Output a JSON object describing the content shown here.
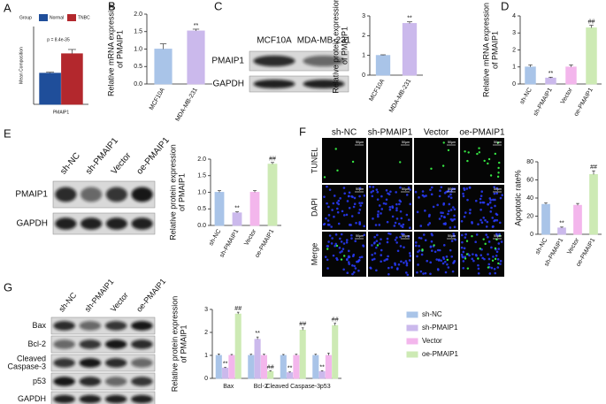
{
  "panels": [
    "A",
    "B",
    "C",
    "D",
    "E",
    "F",
    "G"
  ],
  "blots": {
    "C": {
      "columns": [
        "MCF10A",
        "MDA-MB-231"
      ],
      "rows": [
        [
          "PMAIP1"
        ],
        [
          "GAPDH"
        ]
      ]
    },
    "E": {
      "columns": [
        "sh-NC",
        "sh-PMAIP1",
        "Vector",
        "oe-PMAIP1"
      ],
      "rows": [
        [
          "PMAIP1"
        ],
        [
          "GAPDH"
        ]
      ]
    },
    "G": {
      "columns": [
        "sh-NC",
        "sh-PMAIP1",
        "Vector",
        "oe-PMAIP1"
      ],
      "rows": [
        [
          "Bax"
        ],
        [
          "Bcl-2"
        ],
        [
          "Cleaved",
          "Caspase-3"
        ],
        [
          "p53"
        ],
        [
          "GAPDH"
        ]
      ]
    }
  },
  "microscopy": {
    "columns": [
      "sh-NC",
      "sh-PMAIP1",
      "Vector",
      "oe-PMAIP1"
    ],
    "rows": [
      "TUNEL",
      "DAPI",
      "Merge"
    ],
    "scale": "50μm"
  },
  "chart_data": [
    {
      "type": "bar",
      "ylabel": [
        "Mean Composition"
      ],
      "legend_title": "Group",
      "annotation": "p = 8.4e-35",
      "categories": [
        "PMAIP1"
      ],
      "ylim": [
        0,
        4
      ],
      "series": [
        {
          "name": "Normal",
          "color": "#1f4e9a",
          "values": [
            1.6
          ],
          "errors": [
            0.05
          ]
        },
        {
          "name": "TNBC",
          "color": "#b3282d",
          "values": [
            2.6
          ],
          "errors": [
            0.22
          ]
        }
      ]
    },
    {
      "type": "bar",
      "ylabel": [
        "Relative mRNA expression",
        "of PMAIP1"
      ],
      "categories": [
        "MCF10A",
        "MDA-MB-231"
      ],
      "values": [
        1.0,
        1.52
      ],
      "errors": [
        0.15,
        0.05
      ],
      "colors": [
        "#a9c4e8",
        "#cbb9ec"
      ],
      "significance": [
        null,
        "**"
      ],
      "ylim": [
        0,
        2
      ],
      "yticks": [
        {
          "value": 0,
          "label": "0.0"
        },
        0.5,
        {
          "value": 1,
          "label": "1.0"
        },
        1.5,
        {
          "value": 2,
          "label": "2.0"
        }
      ]
    },
    {
      "type": "bar",
      "ylabel": [
        "Relative protein expression",
        "of PMAIP1"
      ],
      "categories": [
        "MCF10A",
        "MDA-MB-231"
      ],
      "values": [
        1.0,
        2.62
      ],
      "errors": [
        0.03,
        0.08
      ],
      "colors": [
        "#a9c4e8",
        "#cbb9ec"
      ],
      "significance": [
        null,
        "**"
      ],
      "ylim": [
        0,
        3
      ],
      "yticks": [
        0,
        1,
        2,
        3
      ]
    },
    {
      "type": "bar",
      "ylabel": [
        "Relative mRNA expression",
        "of PMAIP1"
      ],
      "categories": [
        "sh-NC",
        "sh-PMAIP1",
        "Vector",
        "oe-PMAIP1"
      ],
      "values": [
        1.0,
        0.35,
        1.0,
        3.3
      ],
      "errors": [
        0.12,
        0.05,
        0.12,
        0.15
      ],
      "colors": [
        "#a9c4e8",
        "#cbb9ec",
        "#f3b6ec",
        "#cdeab4"
      ],
      "significance": [
        null,
        "**",
        null,
        "##"
      ],
      "ylim": [
        0,
        4
      ],
      "yticks": [
        0,
        1,
        2,
        3,
        4
      ]
    },
    {
      "type": "bar",
      "ylabel": [
        "Relative protein expression",
        "of PMAIP1"
      ],
      "categories": [
        "sh-NC",
        "sh-PMAIP1",
        "Vector",
        "oe-PMAIP1"
      ],
      "values": [
        1.0,
        0.38,
        1.0,
        1.85
      ],
      "errors": [
        0.05,
        0.03,
        0.05,
        0.05
      ],
      "colors": [
        "#a9c4e8",
        "#cbb9ec",
        "#f3b6ec",
        "#cdeab4"
      ],
      "significance": [
        null,
        "**",
        null,
        "##"
      ],
      "ylim": [
        0,
        2
      ],
      "yticks": [
        {
          "value": 0,
          "label": "0.0"
        },
        0.5,
        {
          "value": 1,
          "label": "1.0"
        },
        1.5,
        {
          "value": 2,
          "label": "2.0"
        }
      ]
    },
    {
      "type": "bar",
      "ylabel": [
        "Apoptotic rate%"
      ],
      "categories": [
        "sh-NC",
        "sh-PMAIP1",
        "Vector",
        "oe-PMAIP1"
      ],
      "values": [
        33,
        7,
        32,
        66
      ],
      "errors": [
        1.5,
        1,
        2,
        4
      ],
      "colors": [
        "#a9c4e8",
        "#cbb9ec",
        "#f3b6ec",
        "#cdeab4"
      ],
      "significance": [
        null,
        "**",
        null,
        "##"
      ],
      "ylim": [
        0,
        80
      ],
      "yticks": [
        0,
        20,
        40,
        60,
        80
      ]
    },
    {
      "type": "bar",
      "ylabel": [
        "Relative protein expression",
        "of PMAIP1"
      ],
      "categories": [
        "Bax",
        "Bcl-2",
        "Cleaved Caspase-3",
        "p53"
      ],
      "ylim": [
        0,
        3
      ],
      "yticks": [
        0,
        1,
        2,
        3
      ],
      "series": [
        {
          "name": "sh-NC",
          "color": "#a9c4e8",
          "values": [
            1.0,
            1.0,
            1.0,
            1.0
          ],
          "errors": [
            0.06,
            0.05,
            0.04,
            0.05
          ]
        },
        {
          "name": "sh-PMAIP1",
          "color": "#cbb9ec",
          "values": [
            0.45,
            1.7,
            0.25,
            0.3
          ],
          "errors": [
            0.03,
            0.1,
            0.03,
            0.03
          ],
          "significance": [
            "**",
            "**",
            "**",
            "**"
          ]
        },
        {
          "name": "Vector",
          "color": "#f3b6ec",
          "values": [
            1.0,
            1.0,
            1.0,
            1.0
          ],
          "errors": [
            0.04,
            0.05,
            0.05,
            0.1
          ]
        },
        {
          "name": "oe-PMAIP1",
          "color": "#cdeab4",
          "values": [
            2.8,
            0.3,
            2.1,
            2.3
          ],
          "errors": [
            0.08,
            0.03,
            0.1,
            0.1
          ],
          "significance": [
            "##",
            "##",
            "##",
            "##"
          ]
        }
      ]
    }
  ]
}
